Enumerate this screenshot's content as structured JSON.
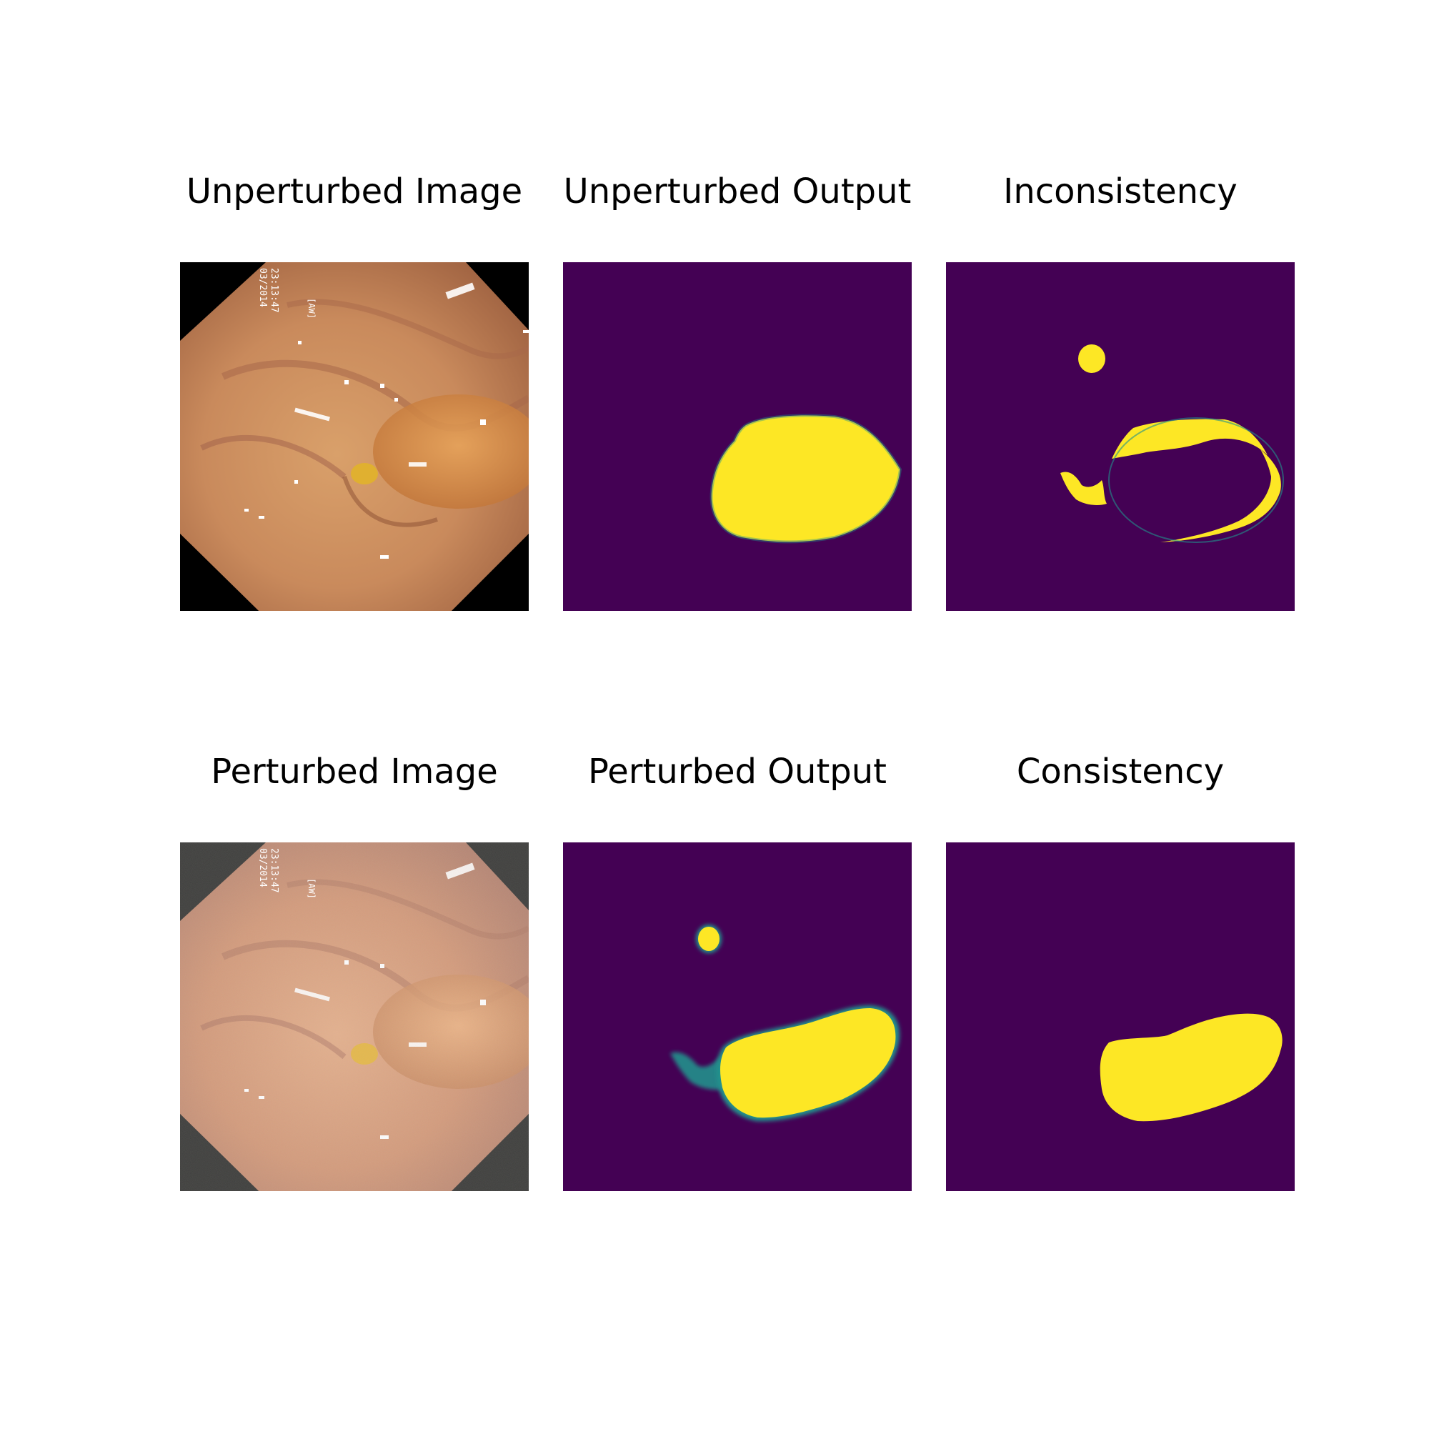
{
  "figure": {
    "rows": [
      {
        "panels": [
          {
            "title": "Unperturbed Image",
            "kind": "endoscopy-image",
            "overlay_text": [
              "03/2014",
              "23:13:47",
              "[AW]"
            ]
          },
          {
            "title": "Unperturbed Output",
            "kind": "segmentation-mask"
          },
          {
            "title": "Inconsistency",
            "kind": "difference-mask"
          }
        ]
      },
      {
        "panels": [
          {
            "title": "Perturbed Image",
            "kind": "noisy-endoscopy-image",
            "overlay_text": [
              "03/2014",
              "23:13:47",
              "[AW]"
            ]
          },
          {
            "title": "Perturbed Output",
            "kind": "segmentation-mask"
          },
          {
            "title": "Consistency",
            "kind": "consistency-mask"
          }
        ]
      }
    ],
    "colors": {
      "mask_background": "#440154",
      "mask_foreground": "#fde725",
      "mask_edge": "#21918c",
      "background": "#ffffff"
    }
  }
}
